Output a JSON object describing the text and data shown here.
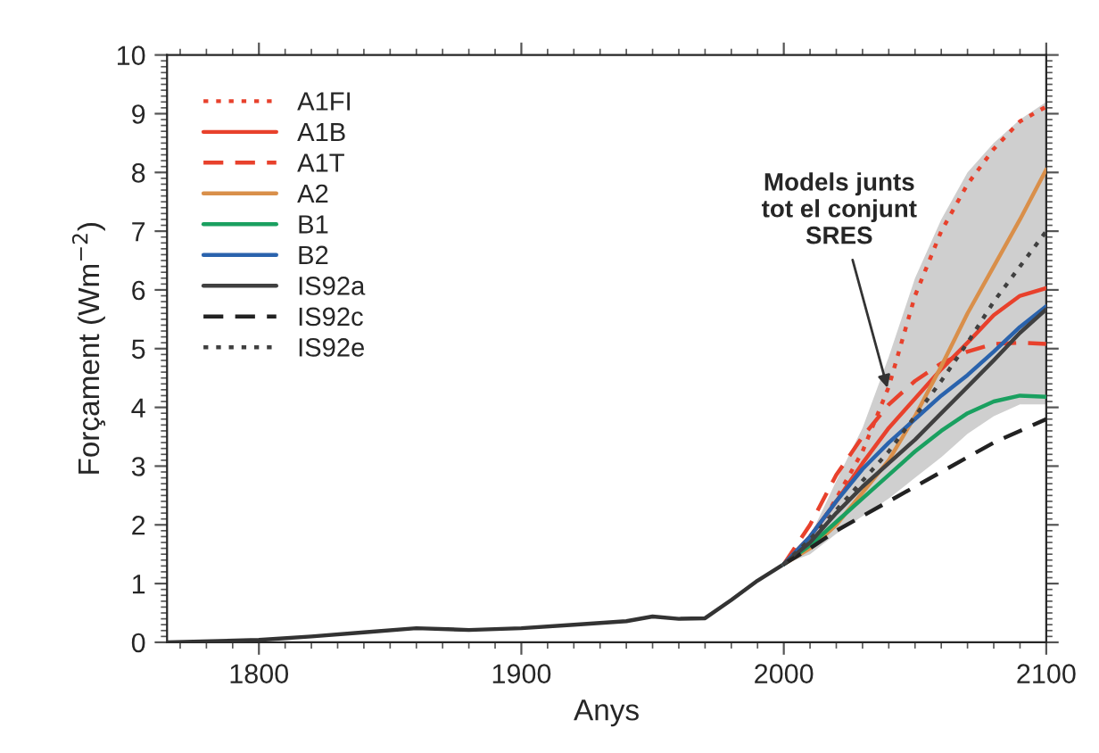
{
  "chart_data": {
    "type": "line",
    "xlabel": "Anys",
    "ylabel": "Forçament (Wm$^{−2}$)",
    "xlim": [
      1765,
      2100
    ],
    "xticks": [
      1800,
      1900,
      2000,
      2100
    ],
    "ylim": [
      0,
      10
    ],
    "yticks": [
      0,
      1,
      2,
      3,
      4,
      5,
      6,
      7,
      8,
      9,
      10
    ],
    "grid": false,
    "legend": "top left",
    "annotations": [
      {
        "text": "Models junts\ntot el conjunt\nSRES",
        "x": 2040,
        "y": 4.25
      }
    ],
    "series": [
      {
        "color": "#333333",
        "line_style": "solid",
        "x": [
          1765,
          1800,
          1820,
          1840,
          1860,
          1880,
          1900,
          1920,
          1940,
          1950,
          1960,
          1970,
          1980,
          1990,
          2000
        ],
        "values": [
          0,
          0.04,
          0.1,
          0.17,
          0.24,
          0.21,
          0.24,
          0.3,
          0.36,
          0.44,
          0.4,
          0.41,
          0.72,
          1.05,
          1.33
        ]
      },
      {
        "name": "A1FI",
        "color": "#e8412c",
        "line_style": "dotted",
        "values": [
          1.33,
          1.7,
          2.45,
          3.25,
          4.35,
          5.9,
          7.0,
          7.8,
          8.4,
          8.87,
          9.12
        ]
      },
      {
        "name": "A1B",
        "color": "#e8412c",
        "line_style": "solid",
        "values": [
          1.33,
          1.8,
          2.4,
          3.05,
          3.65,
          4.15,
          4.65,
          5.1,
          5.57,
          5.9,
          6.03
        ],
        "lower": [
          1.33,
          1.5,
          1.85,
          2.15,
          2.45,
          2.8,
          3.15,
          3.55,
          3.85,
          4.05,
          4.05
        ],
        "upper": [
          1.33,
          1.8,
          2.75,
          3.65,
          4.86,
          6.2,
          7.2,
          8.0,
          8.5,
          8.9,
          9.2
        ]
      },
      {
        "name": "A1T",
        "color": "#e8412c",
        "line_style": "dashed",
        "values": [
          1.33,
          2.0,
          2.85,
          3.5,
          4.05,
          4.45,
          4.75,
          4.95,
          5.08,
          5.1,
          5.08
        ]
      },
      {
        "name": "A2",
        "color": "#d98f4a",
        "line_style": "solid",
        "values": [
          1.33,
          1.6,
          2.0,
          2.55,
          3.1,
          3.85,
          4.7,
          5.6,
          6.4,
          7.2,
          8.05
        ]
      },
      {
        "name": "B1",
        "color": "#1aa060",
        "line_style": "solid",
        "values": [
          1.33,
          1.65,
          2.05,
          2.45,
          2.85,
          3.25,
          3.6,
          3.9,
          4.1,
          4.2,
          4.18
        ]
      },
      {
        "name": "B2",
        "color": "#2a63ad",
        "line_style": "solid",
        "values": [
          1.33,
          1.8,
          2.4,
          2.95,
          3.4,
          3.8,
          4.2,
          4.55,
          4.95,
          5.37,
          5.72
        ]
      },
      {
        "name": "IS92a",
        "color": "#404040",
        "line_style": "solid",
        "values": [
          1.33,
          1.7,
          2.2,
          2.65,
          3.05,
          3.45,
          3.9,
          4.35,
          4.8,
          5.27,
          5.67
        ]
      },
      {
        "name": "IS92c",
        "color": "#222222",
        "line_style": "dashed",
        "values": [
          1.33,
          1.6,
          1.9,
          2.15,
          2.4,
          2.65,
          2.9,
          3.15,
          3.4,
          3.6,
          3.8
        ]
      },
      {
        "name": "IS92e",
        "color": "#404040",
        "line_style": "dotted",
        "values": [
          1.33,
          1.75,
          2.25,
          2.75,
          3.25,
          3.85,
          4.45,
          5.1,
          5.8,
          6.4,
          7.0
        ]
      }
    ],
    "x": [
      2000,
      2010,
      2020,
      2030,
      2040,
      2050,
      2060,
      2070,
      2080,
      2090,
      2100
    ]
  }
}
